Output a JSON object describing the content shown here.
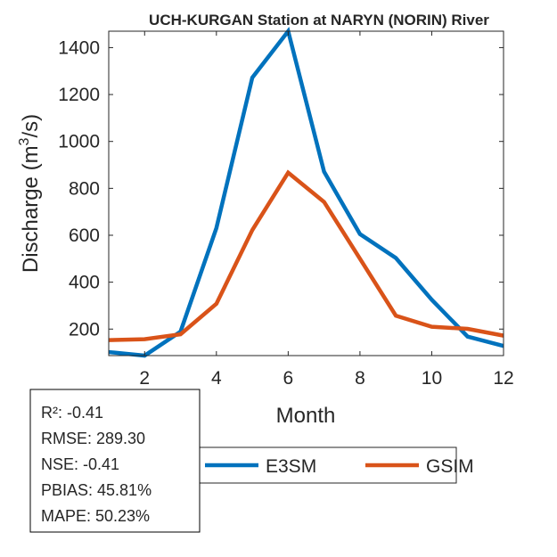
{
  "chart_data": {
    "type": "line",
    "title": "UCH-KURGAN  Station at  NARYN (NORIN)  River",
    "xlabel": "Month",
    "ylabel": "Discharge (m",
    "ylabel_sup": "3",
    "ylabel_tail": "/s)",
    "xlim": [
      1,
      12
    ],
    "ylim": [
      87,
      1470
    ],
    "xticks": [
      2,
      4,
      6,
      8,
      10,
      12
    ],
    "yticks": [
      200,
      400,
      600,
      800,
      1000,
      1200,
      1400
    ],
    "grid": false,
    "legend_placement": "bottom",
    "x": [
      1,
      2,
      3,
      4,
      5,
      6,
      7,
      8,
      9,
      10,
      11,
      12
    ],
    "series": [
      {
        "name": "E3SM",
        "color": "#0072BD",
        "values": [
          102,
          87,
          189,
          631,
          1272,
          1470,
          871,
          605,
          503,
          325,
          168,
          128
        ]
      },
      {
        "name": "GSIM",
        "color": "#D95319",
        "values": [
          153,
          157,
          178,
          308,
          622,
          867,
          742,
          500,
          257,
          210,
          201,
          172
        ]
      }
    ],
    "stats": [
      "R²: -0.41",
      "RMSE: 289.30",
      "NSE: -0.41",
      "PBIAS: 45.81%",
      "MAPE: 50.23%"
    ]
  }
}
